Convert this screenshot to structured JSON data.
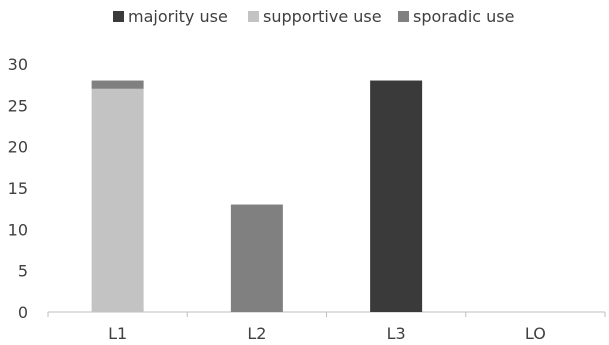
{
  "chart_data": {
    "type": "bar",
    "stacked": true,
    "categories": [
      "L1",
      "L2",
      "L3",
      "LO"
    ],
    "series": [
      {
        "name": "majority use",
        "color": "#3a3a3a",
        "values": [
          0,
          0,
          28,
          0
        ]
      },
      {
        "name": "supportive use",
        "color": "#c3c3c3",
        "values": [
          27,
          0,
          0,
          0
        ]
      },
      {
        "name": "sporadic use",
        "color": "#808080",
        "values": [
          1,
          13,
          0,
          0
        ]
      }
    ],
    "ylim": [
      0,
      30
    ],
    "yticks": [
      0,
      5,
      10,
      15,
      20,
      25,
      30
    ],
    "legend_position": "top",
    "grid": false
  }
}
